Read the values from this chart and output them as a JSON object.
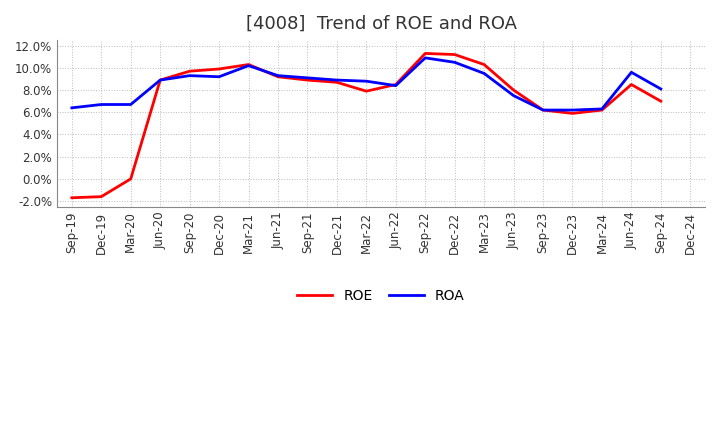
{
  "title": "[4008]  Trend of ROE and ROA",
  "x_labels": [
    "Sep-19",
    "Dec-19",
    "Mar-20",
    "Jun-20",
    "Sep-20",
    "Dec-20",
    "Mar-21",
    "Jun-21",
    "Sep-21",
    "Dec-21",
    "Mar-22",
    "Jun-22",
    "Sep-22",
    "Dec-22",
    "Mar-23",
    "Jun-23",
    "Sep-23",
    "Dec-23",
    "Mar-24",
    "Jun-24",
    "Sep-24",
    "Dec-24"
  ],
  "roe": [
    -1.7,
    -1.6,
    0.0,
    8.9,
    9.7,
    9.9,
    10.3,
    9.2,
    8.9,
    8.7,
    7.9,
    8.5,
    11.3,
    11.2,
    10.3,
    8.0,
    6.2,
    5.9,
    6.2,
    8.5,
    7.0,
    null
  ],
  "roa": [
    6.4,
    6.7,
    6.7,
    8.9,
    9.3,
    9.2,
    10.2,
    9.3,
    9.1,
    8.9,
    8.8,
    8.4,
    10.9,
    10.5,
    9.5,
    7.5,
    6.2,
    6.2,
    6.3,
    9.6,
    8.1,
    null
  ],
  "ylim": [
    -2.5,
    12.5
  ],
  "yticks": [
    -2.0,
    0.0,
    2.0,
    4.0,
    6.0,
    8.0,
    10.0,
    12.0
  ],
  "roe_color": "#ff0000",
  "roa_color": "#0000ff",
  "bg_color": "#ffffff",
  "grid_color": "#aaaaaa",
  "title_fontsize": 13,
  "legend_fontsize": 10,
  "tick_fontsize": 8.5
}
